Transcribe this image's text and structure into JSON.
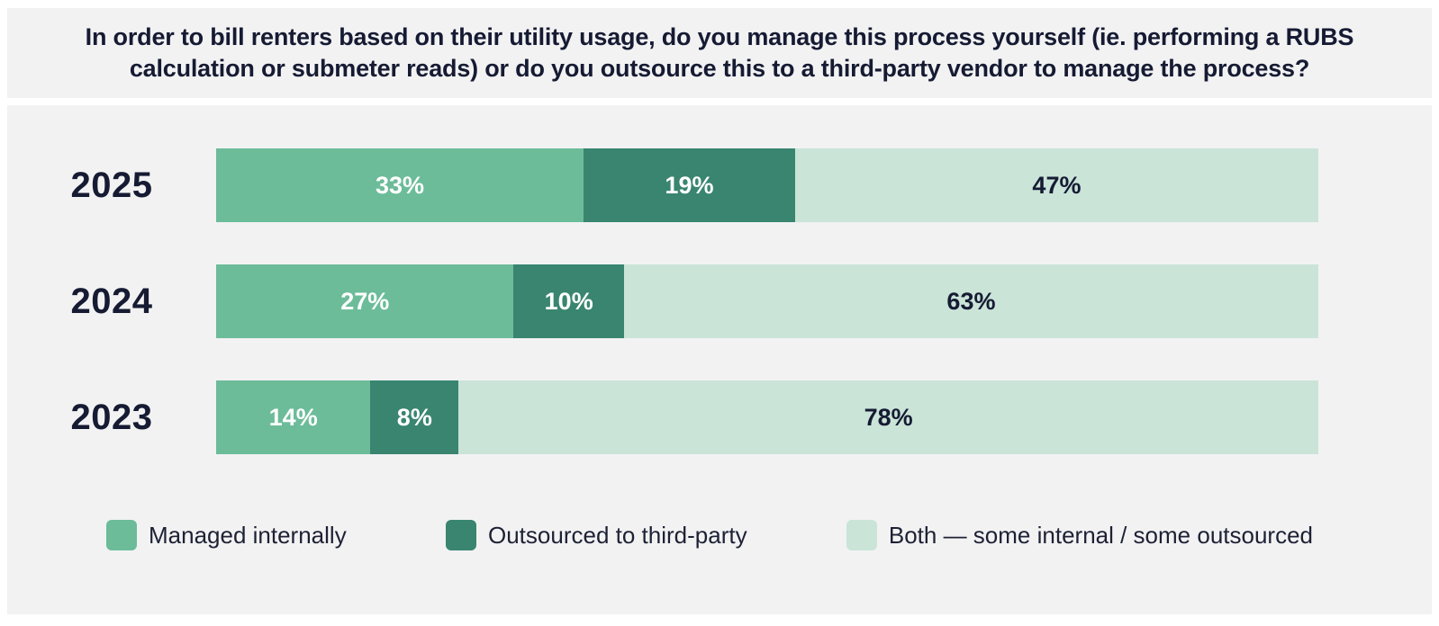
{
  "page": {
    "background": "#ffffff",
    "panel_background": "#f2f2f3",
    "text_color": "#161b33"
  },
  "title": "In order to bill renters based on their utility usage, do you manage this process yourself (ie. performing a RUBS calculation or submeter reads) or do you outsource this to a third-party vendor to manage the process?",
  "chart_data": {
    "type": "bar",
    "orientation": "horizontal",
    "stacked": true,
    "categories": [
      "2025",
      "2024",
      "2023"
    ],
    "series": [
      {
        "name": "Managed internally",
        "color": "#6cbc99",
        "label_color": "#ffffff",
        "values": [
          33,
          27,
          14
        ]
      },
      {
        "name": "Outsourced to third-party",
        "color": "#398570",
        "label_color": "#ffffff",
        "values": [
          19,
          10,
          8
        ]
      },
      {
        "name": "Both — some internal / some outsourced",
        "color": "#cae4d8",
        "label_color": "#161b33",
        "values": [
          47,
          63,
          78
        ]
      }
    ],
    "value_suffix": "%",
    "xlim": [
      0,
      100
    ],
    "grid": false,
    "legend_position": "bottom"
  }
}
